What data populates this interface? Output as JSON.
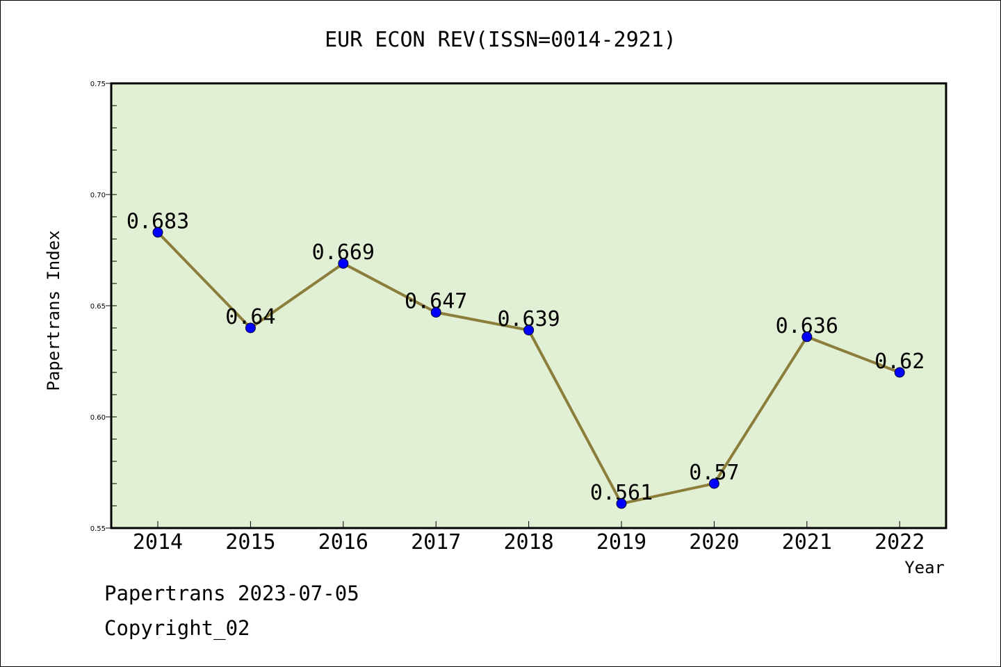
{
  "chart_data": {
    "type": "line",
    "title": "EUR ECON REV(ISSN=0014-2921)",
    "xlabel": "Year",
    "ylabel": "Papertrans Index",
    "categories": [
      "2014",
      "2015",
      "2016",
      "2017",
      "2018",
      "2019",
      "2020",
      "2021",
      "2022"
    ],
    "series": [
      {
        "values": [
          0.683,
          0.64,
          0.669,
          0.647,
          0.639,
          0.561,
          0.57,
          0.636,
          0.62
        ],
        "labels": [
          "0.683",
          "0.64",
          "0.669",
          "0.647",
          "0.639",
          "0.561",
          "0.57",
          "0.636",
          "0.62"
        ]
      }
    ],
    "ylim": [
      0.55,
      0.75
    ],
    "yticks": [
      "0.55",
      "0.60",
      "0.65",
      "0.70",
      "0.75"
    ],
    "grid": false,
    "colors": {
      "plot_background": "#e1efd4",
      "line": "#8b7d3a",
      "marker": "#0000ff"
    }
  },
  "footer": {
    "line1": "Papertrans 2023-07-05",
    "line2": "Copyright_02"
  }
}
